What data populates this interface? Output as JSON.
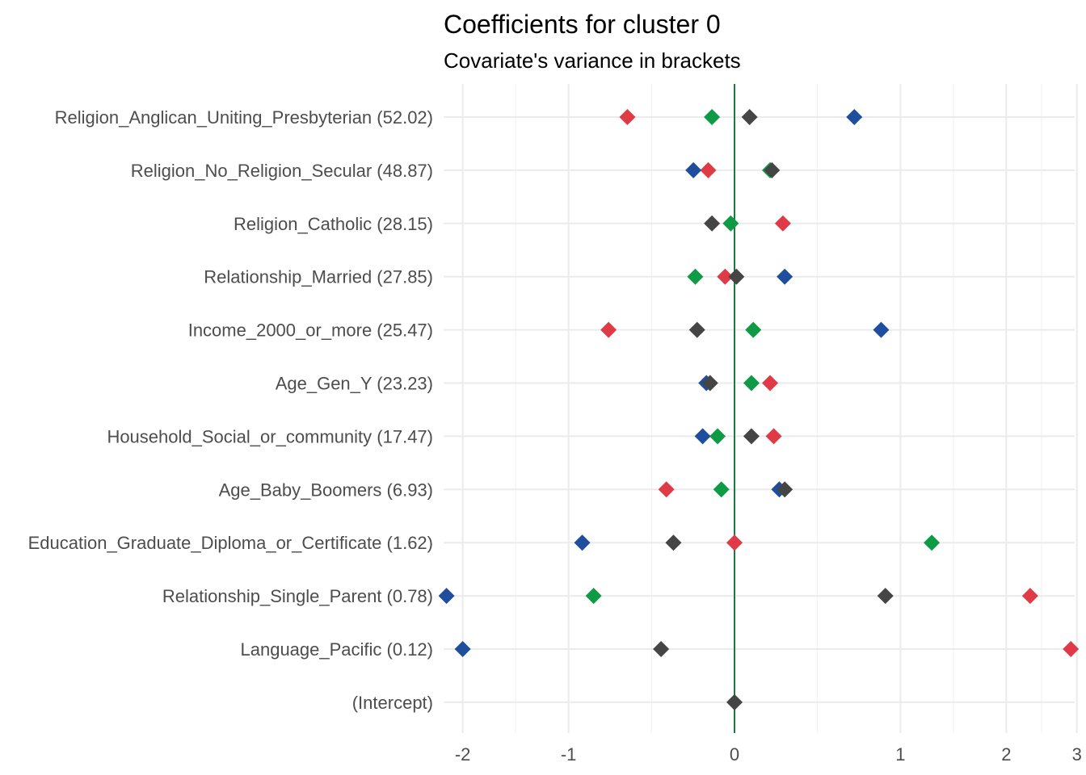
{
  "chart_data": {
    "type": "scatter",
    "title": "Coefficients for cluster 0",
    "subtitle": "Covariate's variance in brackets",
    "xlabel": "",
    "ylabel": "",
    "grid": true,
    "legend": "none",
    "x_axis": {
      "transform": "signed-log",
      "ticks": [
        -2,
        -1,
        0,
        1,
        2,
        3
      ],
      "tick_labels": [
        "-2",
        "-1",
        "0",
        "1",
        "2",
        "3"
      ],
      "range": [
        -2.3,
        3.2
      ]
    },
    "reference_line": {
      "x": 0,
      "color": "#1a7a3a"
    },
    "categories": [
      "Religion_Anglican_Uniting_Presbyterian (52.02)",
      "Religion_No_Religion_Secular (48.87)",
      "Religion_Catholic (28.15)",
      "Relationship_Married (27.85)",
      "Income_2000_or_more (25.47)",
      "Age_Gen_Y (23.23)",
      "Household_Social_or_community (17.47)",
      "Age_Baby_Boomers (6.93)",
      "Education_Graduate_Diploma_or_Certificate (1.62)",
      "Relationship_Single_Parent (0.78)",
      "Language_Pacific (0.12)",
      "(Intercept)"
    ],
    "series": [
      {
        "color": "#e03a47",
        "values": [
          -0.6,
          -0.14,
          0.26,
          -0.05,
          -0.72,
          0.19,
          0.21,
          -0.37,
          0,
          2.3,
          2.9,
          null
        ]
      },
      {
        "color": "#0f9a45",
        "values": [
          -0.12,
          0.19,
          -0.02,
          -0.21,
          0.1,
          0.09,
          -0.09,
          -0.07,
          1.25,
          -0.82,
          null,
          null
        ]
      },
      {
        "color": "#1f4e9c",
        "values": [
          0.68,
          -0.22,
          null,
          0.27,
          0.86,
          -0.15,
          -0.17,
          0.24,
          -0.9,
          -2.2,
          -2.0,
          null
        ]
      },
      {
        "color": "#454545",
        "values": [
          0.08,
          0.2,
          -0.12,
          0.01,
          -0.2,
          -0.13,
          0.09,
          0.27,
          -0.33,
          0.89,
          -0.4,
          0
        ]
      }
    ]
  }
}
